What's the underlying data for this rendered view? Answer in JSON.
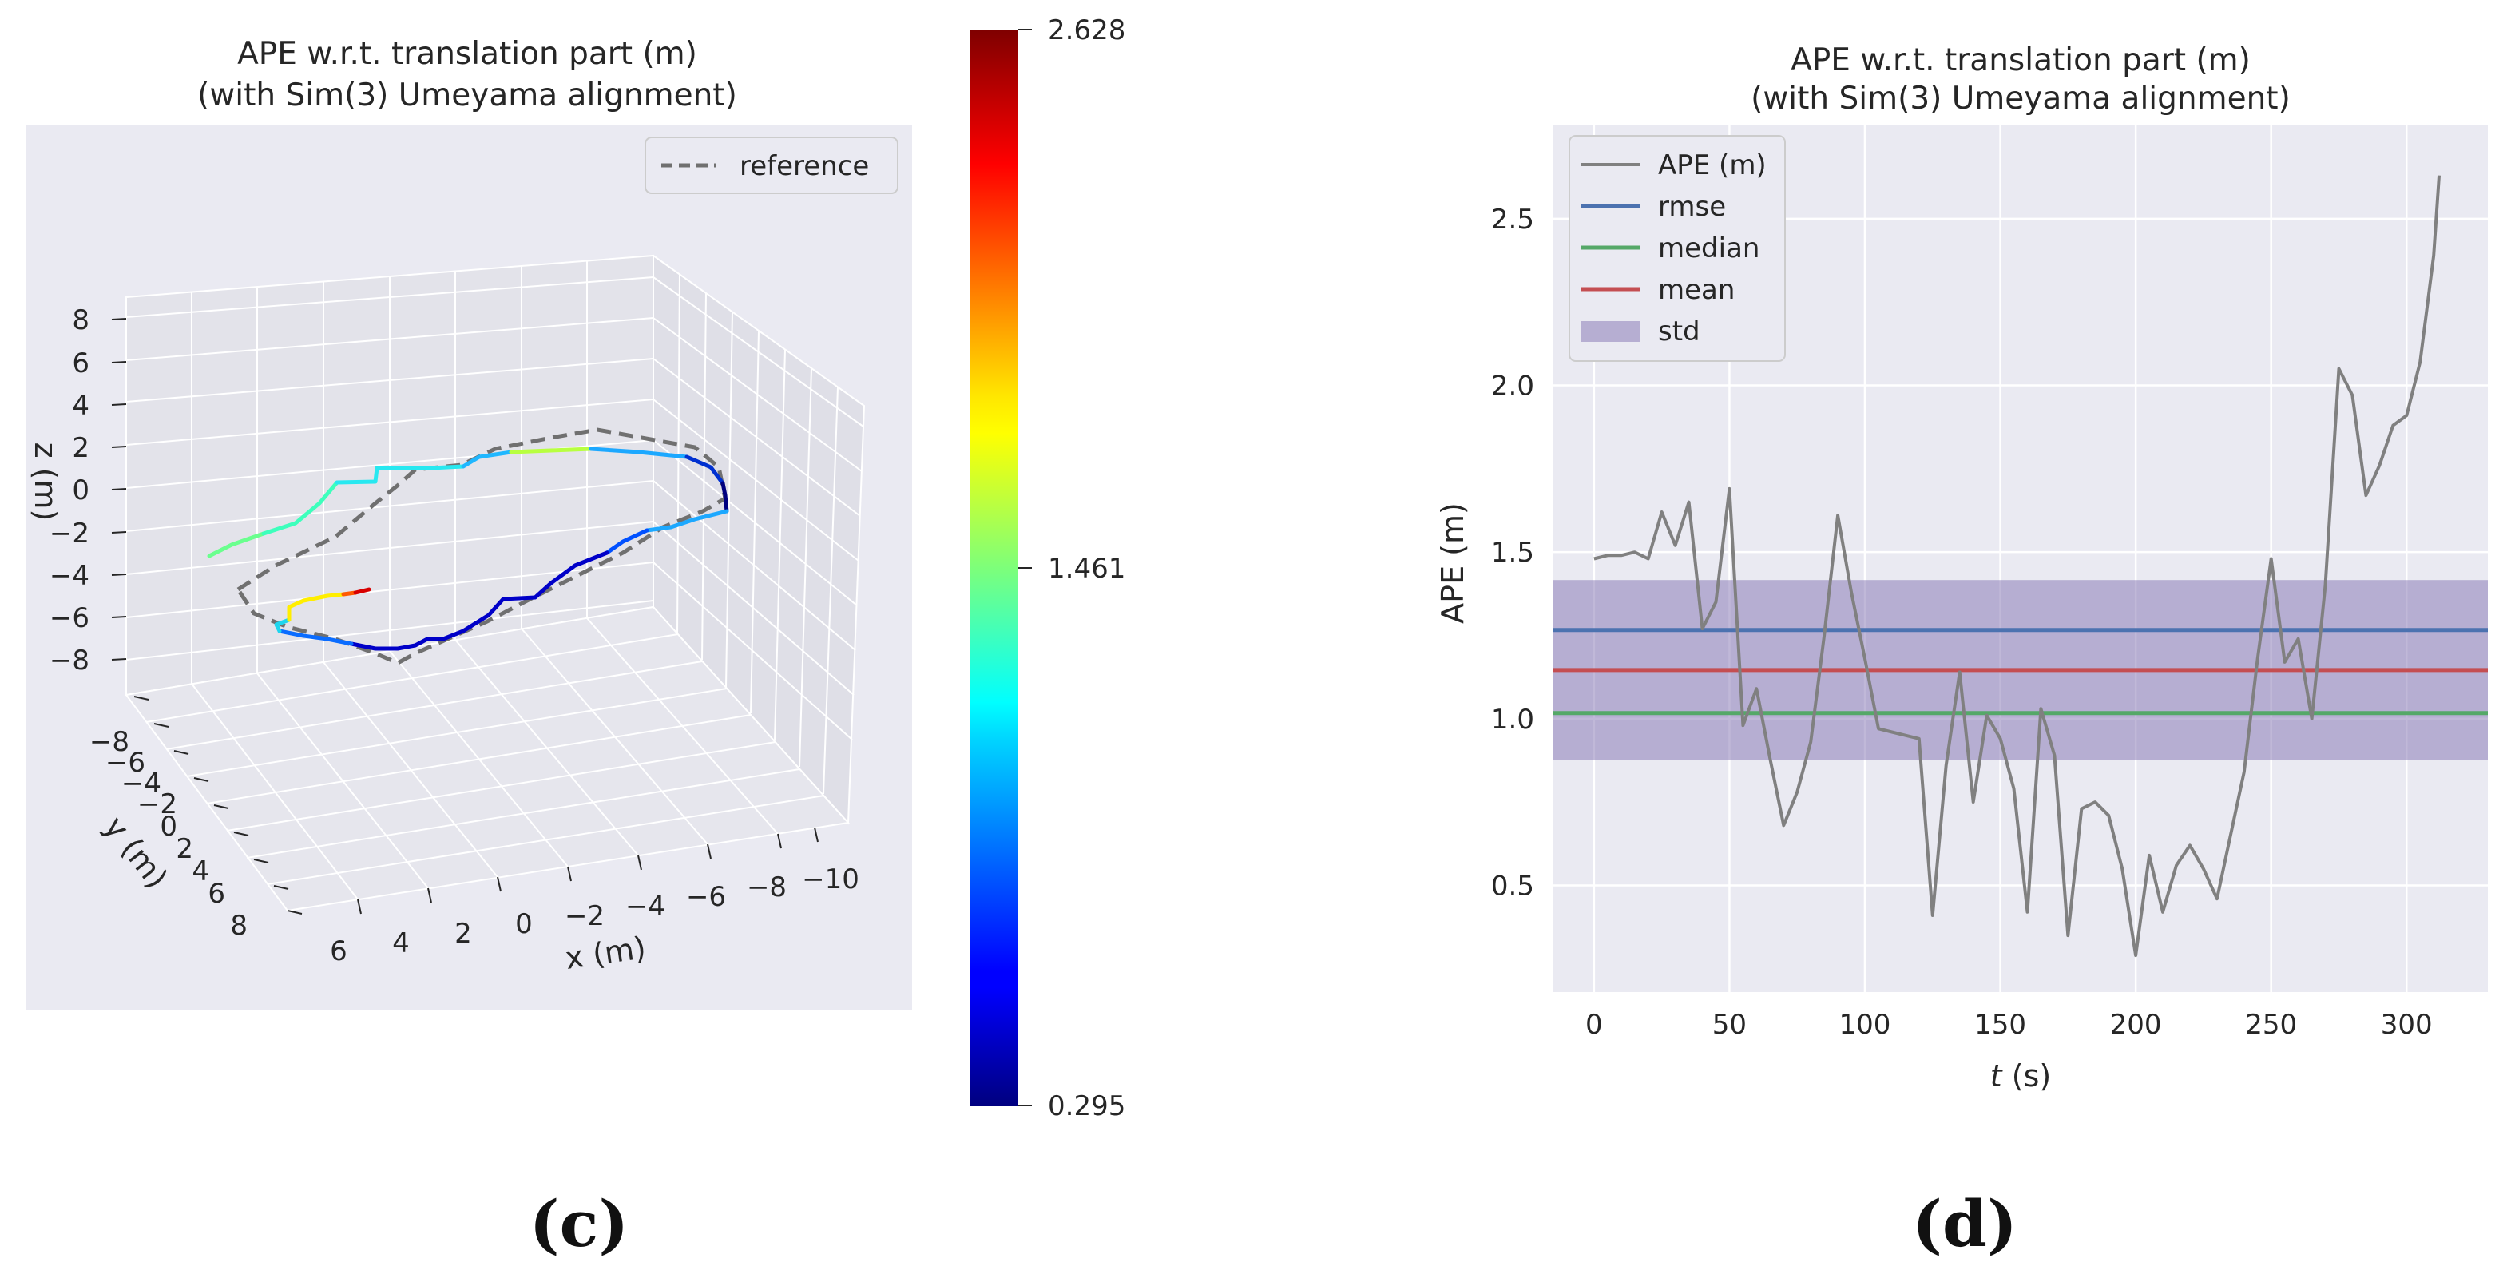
{
  "panels": {
    "c": {
      "label": "(c)",
      "title_line1": "APE w.r.t. translation part (m)",
      "title_line2": "(with Sim(3) Umeyama alignment)",
      "legend": {
        "reference_label": "reference"
      },
      "x_axis": {
        "label": "x (m)",
        "ticks": [
          "6",
          "4",
          "2",
          "0",
          "−2",
          "−4",
          "−6",
          "−8",
          "−10"
        ]
      },
      "y_axis": {
        "label": "y (m)",
        "ticks": [
          "−8",
          "−6",
          "−4",
          "−2",
          "0",
          "2",
          "4",
          "6",
          "8"
        ]
      },
      "z_axis": {
        "label": "z (m)",
        "ticks": [
          "8",
          "6",
          "4",
          "2",
          "0",
          "−2",
          "−4",
          "−6",
          "−8"
        ]
      },
      "colorbar": {
        "min_label": "0.295",
        "mid_label": "1.461",
        "max_label": "2.628",
        "cmap": "jet"
      }
    },
    "d": {
      "label": "(d)",
      "title_line1": "APE w.r.t. translation part (m)",
      "title_line2": "(with Sim(3) Umeyama alignment)"
    }
  },
  "chart_data": [
    {
      "id": "c",
      "type": "scatter",
      "subtype": "3d-trajectory",
      "title": "APE w.r.t. translation part (m)\n(with Sim(3) Umeyama alignment)",
      "xlabel": "x (m)",
      "ylabel": "y (m)",
      "zlabel": "z (m)",
      "xlim": [
        -10,
        6
      ],
      "ylim": [
        -8,
        8
      ],
      "zlim": [
        -8,
        8
      ],
      "colorbar_range": [
        0.295,
        2.628
      ],
      "legend": [
        "reference"
      ],
      "legend_position": "top-right"
    },
    {
      "id": "d",
      "type": "line",
      "title": "APE w.r.t. translation part (m)\n(with Sim(3) Umeyama alignment)",
      "xlabel": "t (s)",
      "ylabel": "APE (m)",
      "xlim": [
        -15,
        330
      ],
      "ylim": [
        0.18,
        2.78
      ],
      "xticks": [
        0,
        50,
        100,
        150,
        200,
        250,
        300
      ],
      "yticks": [
        0.5,
        1.0,
        1.5,
        2.0,
        2.5
      ],
      "xtick_labels": [
        "0",
        "50",
        "100",
        "150",
        "200",
        "250",
        "300"
      ],
      "ytick_labels": [
        "0.5",
        "1.0",
        "1.5",
        "2.0",
        "2.5"
      ],
      "legend_position": "top-left",
      "legend_items": [
        {
          "key": "ape",
          "label": "APE (m)",
          "color": "#808080"
        },
        {
          "key": "rmse",
          "label": "rmse",
          "color": "#4c72b0"
        },
        {
          "key": "median",
          "label": "median",
          "color": "#55a868"
        },
        {
          "key": "mean",
          "label": "mean",
          "color": "#c44e52"
        },
        {
          "key": "std",
          "label": "std",
          "color": "#8172b2"
        }
      ],
      "series": [
        {
          "name": "APE (m)",
          "color": "#808080",
          "x": [
            0,
            5,
            10,
            15,
            20,
            25,
            30,
            35,
            40,
            45,
            50,
            55,
            60,
            65,
            70,
            75,
            80,
            85,
            90,
            95,
            100,
            105,
            110,
            115,
            120,
            125,
            130,
            135,
            140,
            145,
            150,
            155,
            160,
            165,
            170,
            175,
            180,
            185,
            190,
            195,
            200,
            205,
            210,
            215,
            220,
            225,
            230,
            235,
            240,
            245,
            250,
            255,
            260,
            265,
            270,
            275,
            280,
            285,
            290,
            295,
            300,
            305,
            310,
            312
          ],
          "values": [
            1.48,
            1.49,
            1.49,
            1.5,
            1.48,
            1.62,
            1.52,
            1.65,
            1.27,
            1.35,
            1.69,
            0.98,
            1.09,
            0.88,
            0.68,
            0.78,
            0.93,
            1.25,
            1.61,
            1.38,
            1.18,
            0.97,
            0.96,
            0.95,
            0.94,
            0.41,
            0.86,
            1.14,
            0.75,
            1.01,
            0.94,
            0.79,
            0.42,
            1.03,
            0.89,
            0.35,
            0.73,
            0.75,
            0.71,
            0.55,
            0.29,
            0.59,
            0.42,
            0.56,
            0.62,
            0.55,
            0.46,
            0.65,
            0.84,
            1.18,
            1.48,
            1.17,
            1.24,
            1.0,
            1.4,
            2.05,
            1.97,
            1.67,
            1.76,
            1.88,
            1.91,
            2.07,
            2.39,
            2.63
          ]
        }
      ],
      "stats": {
        "rmse": 1.266,
        "median": 1.017,
        "mean": 1.146,
        "std": 0.27
      }
    }
  ]
}
